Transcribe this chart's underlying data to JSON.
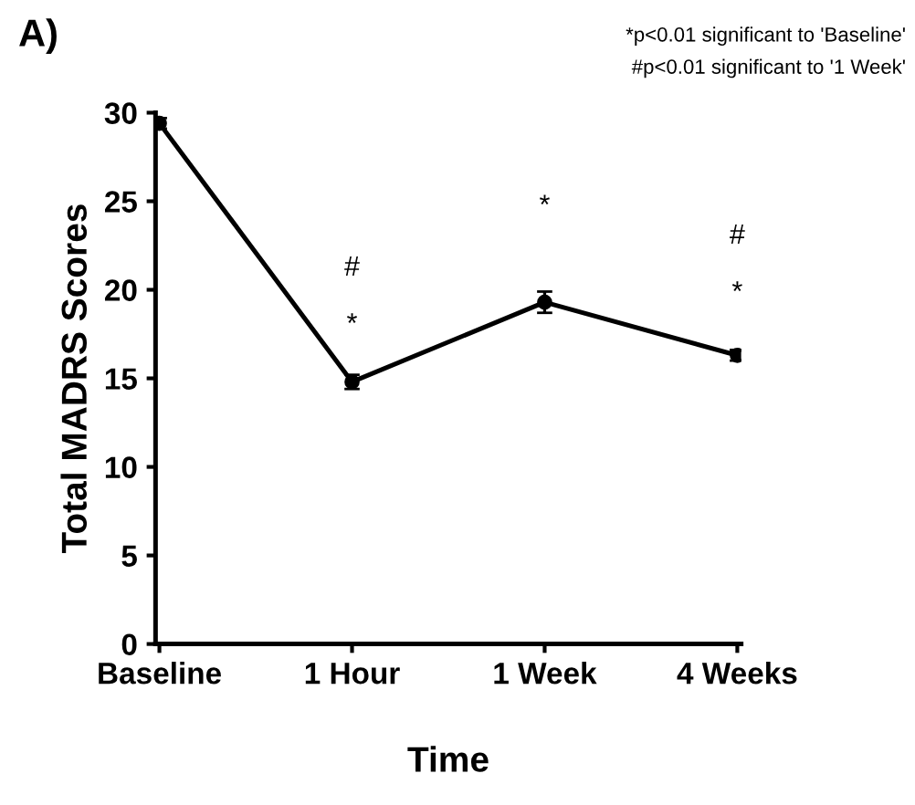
{
  "chart_data": {
    "type": "line",
    "title": "A)",
    "xlabel": "Time",
    "ylabel": "Total MADRS Scores",
    "categories": [
      "Baseline",
      "1 Hour",
      "1 Week",
      "4 Weeks"
    ],
    "values": [
      29.4,
      14.8,
      19.3,
      16.3
    ],
    "errors": [
      0.3,
      0.4,
      0.6,
      0.3
    ],
    "color": "#000000",
    "marker": "circle",
    "line_style": "solid",
    "grid": false,
    "legend": false,
    "ylim": [
      0,
      30
    ],
    "yticks": [
      0,
      5,
      10,
      15,
      20,
      25,
      30
    ],
    "annotations": [
      "#",
      "*",
      "*",
      "#",
      "*",
      "*p<0.01 significant to 'Baseline'",
      "#p<0.01 significant to '1 Week'"
    ]
  }
}
